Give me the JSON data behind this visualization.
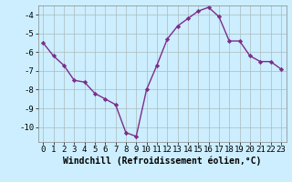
{
  "x": [
    0,
    1,
    2,
    3,
    4,
    5,
    6,
    7,
    8,
    9,
    10,
    11,
    12,
    13,
    14,
    15,
    16,
    17,
    18,
    19,
    20,
    21,
    22,
    23
  ],
  "y": [
    -5.5,
    -6.2,
    -6.7,
    -7.5,
    -7.6,
    -8.2,
    -8.5,
    -8.8,
    -10.3,
    -10.5,
    -8.0,
    -6.7,
    -5.3,
    -4.6,
    -4.2,
    -3.8,
    -3.6,
    -4.1,
    -5.4,
    -5.4,
    -6.2,
    -6.5,
    -6.5,
    -6.9
  ],
  "line_color": "#7b2d8b",
  "marker": "D",
  "marker_size": 2.2,
  "bg_color": "#cceeff",
  "grid_color": "#aabbbb",
  "xlabel": "Windchill (Refroidissement éolien,°C)",
  "xlim": [
    -0.5,
    23.5
  ],
  "ylim": [
    -10.8,
    -3.5
  ],
  "yticks": [
    -10,
    -9,
    -8,
    -7,
    -6,
    -5,
    -4
  ],
  "xticks": [
    0,
    1,
    2,
    3,
    4,
    5,
    6,
    7,
    8,
    9,
    10,
    11,
    12,
    13,
    14,
    15,
    16,
    17,
    18,
    19,
    20,
    21,
    22,
    23
  ],
  "tick_fontsize": 6.5,
  "xlabel_fontsize": 7.0,
  "line_width": 1.0
}
